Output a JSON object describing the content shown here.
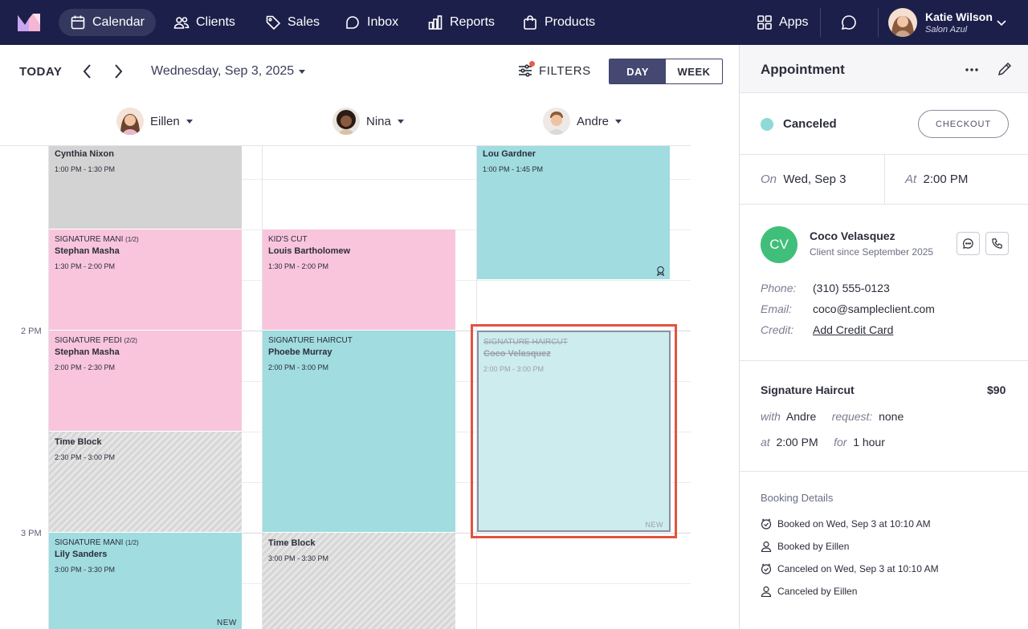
{
  "nav": {
    "items": [
      {
        "label": "Calendar",
        "icon": "calendar-icon",
        "active": true
      },
      {
        "label": "Clients",
        "icon": "users-icon"
      },
      {
        "label": "Sales",
        "icon": "tag-icon"
      },
      {
        "label": "Inbox",
        "icon": "inbox-icon"
      },
      {
        "label": "Reports",
        "icon": "bar-chart-icon"
      },
      {
        "label": "Products",
        "icon": "bag-icon"
      }
    ],
    "apps_label": "Apps",
    "user_name": "Katie Wilson",
    "user_salon": "Salon Azul"
  },
  "toolbar": {
    "today_label": "TODAY",
    "date_label": "Wednesday, Sep 3, 2025",
    "filters_label": "FILTERS",
    "view_day": "DAY",
    "view_week": "WEEK"
  },
  "staff": [
    {
      "name": "Eillen"
    },
    {
      "name": "Nina"
    },
    {
      "name": "Andre"
    }
  ],
  "time_labels": {
    "t2pm": "2 PM",
    "t3pm": "3 PM"
  },
  "appointments": {
    "eillen": [
      {
        "service": "",
        "client": "Cynthia Nixon",
        "time": "1:00 PM - 1:30 PM"
      },
      {
        "service": "SIGNATURE MANI",
        "part": "(1/2)",
        "client": "Stephan Masha",
        "time": "1:30 PM - 2:00 PM"
      },
      {
        "service": "SIGNATURE PEDI",
        "part": "(2/2)",
        "client": "Stephan Masha",
        "time": "2:00 PM - 2:30 PM"
      },
      {
        "service": "",
        "client": "Time Block",
        "time": "2:30 PM - 3:00 PM"
      },
      {
        "service": "SIGNATURE MANI",
        "part": "(1/2)",
        "client": "Lily Sanders",
        "time": "3:00 PM - 3:30 PM",
        "tag": "NEW"
      }
    ],
    "nina": [
      {
        "service": "KID'S CUT",
        "client": "Louis Bartholomew",
        "time": "1:30 PM - 2:00 PM"
      },
      {
        "service": "SIGNATURE HAIRCUT",
        "client": "Phoebe Murray",
        "time": "2:00 PM - 3:00 PM"
      },
      {
        "service": "",
        "client": "Time Block",
        "time": "3:00 PM - 3:30 PM"
      }
    ],
    "andre": [
      {
        "service": "",
        "client": "Lou Gardner",
        "time": "1:00 PM - 1:45 PM"
      },
      {
        "service": "SIGNATURE HAIRCUT",
        "client": "Coco Velasquez",
        "time": "2:00 PM - 3:00 PM",
        "tag": "NEW",
        "status": "canceled"
      }
    ]
  },
  "panel": {
    "title": "Appointment",
    "status": "Canceled",
    "status_color": "#8fd9d7",
    "checkout_label": "CHECKOUT",
    "on_label": "On",
    "on_value": "Wed, Sep 3",
    "at_label": "At",
    "at_value": "2:00 PM",
    "client_initials": "CV",
    "client_name": "Coco Velasquez",
    "client_since": "Client since September 2025",
    "phone_label": "Phone:",
    "phone": "(310) 555-0123",
    "email_label": "Email:",
    "email": "coco@sampleclient.com",
    "credit_label": "Credit:",
    "credit_value": "Add Credit Card",
    "service_name": "Signature Haircut",
    "service_price": "$90",
    "with_label": "with",
    "with_value": "Andre",
    "request_label": "request:",
    "request_value": "none",
    "at2_label": "at",
    "at2_value": "2:00 PM",
    "for_label": "for",
    "for_value": "1 hour",
    "booking_header": "Booking Details",
    "booking": [
      {
        "icon": "clock-icon",
        "text": "Booked on Wed, Sep 3 at 10:10 AM"
      },
      {
        "icon": "person-icon",
        "text": "Booked by Eillen"
      },
      {
        "icon": "clock-icon",
        "text": "Canceled on Wed, Sep 3 at 10:10 AM"
      },
      {
        "icon": "person-icon",
        "text": "Canceled by Eillen"
      }
    ]
  }
}
